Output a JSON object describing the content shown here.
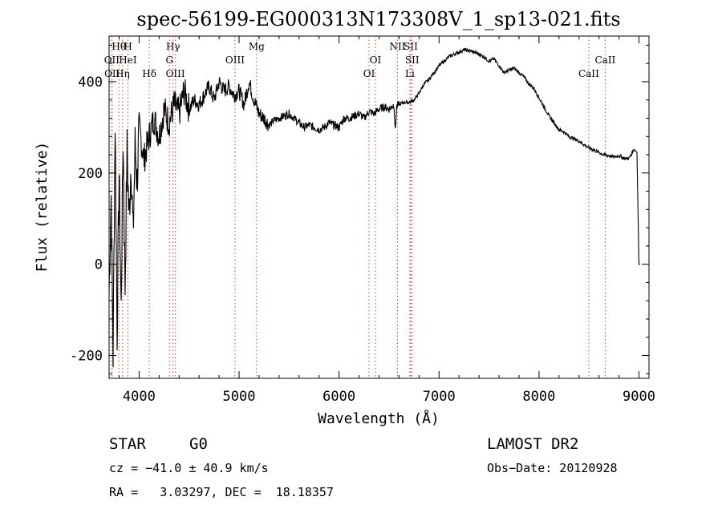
{
  "chart_data": {
    "type": "line",
    "title": "spec-56199-EG000313N173308V_1_sp13-021.fits",
    "xlabel": "Wavelength (Å)",
    "ylabel": "Flux (relative)",
    "xlim": [
      3700,
      9100
    ],
    "ylim": [
      -250,
      500
    ],
    "xticks": [
      4000,
      5000,
      6000,
      7000,
      8000,
      9000
    ],
    "yticks": [
      -200,
      0,
      200,
      400
    ],
    "series": [
      {
        "name": "flux",
        "x": [
          3700,
          3720,
          3740,
          3760,
          3780,
          3800,
          3820,
          3840,
          3860,
          3880,
          3900,
          3920,
          3940,
          3960,
          3980,
          4000,
          4050,
          4100,
          4150,
          4200,
          4250,
          4300,
          4350,
          4400,
          4450,
          4500,
          4550,
          4600,
          4650,
          4700,
          4750,
          4800,
          4850,
          4900,
          4950,
          5000,
          5050,
          5100,
          5150,
          5200,
          5250,
          5300,
          5350,
          5400,
          5450,
          5500,
          5550,
          5600,
          5650,
          5700,
          5750,
          5800,
          5850,
          5900,
          5950,
          6000,
          6050,
          6100,
          6150,
          6200,
          6250,
          6300,
          6350,
          6400,
          6450,
          6500,
          6550,
          6563,
          6575,
          6600,
          6650,
          6700,
          6750,
          6800,
          6850,
          6900,
          6950,
          7000,
          7050,
          7100,
          7150,
          7200,
          7250,
          7300,
          7350,
          7400,
          7450,
          7500,
          7550,
          7600,
          7650,
          7700,
          7750,
          7800,
          7850,
          7900,
          7950,
          8000,
          8050,
          8100,
          8150,
          8200,
          8250,
          8300,
          8350,
          8400,
          8450,
          8500,
          8550,
          8600,
          8650,
          8700,
          8750,
          8800,
          8850,
          8900,
          8950,
          8980,
          9000,
          9010
        ],
        "y": [
          -60,
          150,
          -200,
          320,
          -150,
          200,
          -100,
          280,
          -50,
          250,
          100,
          230,
          60,
          260,
          180,
          300,
          230,
          280,
          320,
          280,
          340,
          310,
          350,
          330,
          380,
          340,
          360,
          350,
          370,
          390,
          360,
          400,
          380,
          390,
          370,
          380,
          350,
          400,
          360,
          330,
          320,
          305,
          315,
          320,
          325,
          330,
          320,
          310,
          300,
          305,
          300,
          295,
          300,
          310,
          305,
          300,
          320,
          320,
          325,
          330,
          320,
          335,
          330,
          340,
          345,
          340,
          350,
          290,
          345,
          350,
          355,
          355,
          360,
          375,
          395,
          405,
          420,
          435,
          445,
          455,
          460,
          465,
          470,
          468,
          465,
          460,
          455,
          445,
          450,
          435,
          420,
          425,
          430,
          420,
          410,
          395,
          385,
          365,
          345,
          325,
          310,
          295,
          290,
          280,
          275,
          270,
          262,
          255,
          250,
          245,
          240,
          238,
          235,
          238,
          232,
          232,
          252,
          245,
          0,
          0
        ]
      }
    ],
    "spectral_lines": [
      {
        "label": "Hθ",
        "row": 1,
        "wave": 3798
      },
      {
        "label": "OII",
        "row": 2,
        "wave": 3727
      },
      {
        "label": "OII",
        "row": 3,
        "wave": 3730
      },
      {
        "label": "H",
        "row": 1,
        "wave": 3889
      },
      {
        "label": "HeI",
        "row": 2,
        "wave": 3888
      },
      {
        "label": "Hη",
        "row": 3,
        "wave": 3835
      },
      {
        "label": "Hδ",
        "row": 3,
        "wave": 4102
      },
      {
        "label": "Hγ",
        "row": 1,
        "wave": 4340
      },
      {
        "label": "G",
        "row": 2,
        "wave": 4304
      },
      {
        "label": "OIII",
        "row": 3,
        "wave": 4363
      },
      {
        "label": "OIII",
        "row": 2,
        "wave": 4959
      },
      {
        "label": "Mg",
        "row": 1,
        "wave": 5175
      },
      {
        "label": "OI",
        "row": 2,
        "wave": 6364
      },
      {
        "label": "OI",
        "row": 3,
        "wave": 6300
      },
      {
        "label": "NII",
        "row": 1,
        "wave": 6584
      },
      {
        "label": "SII",
        "row": 1,
        "wave": 6717
      },
      {
        "label": "SII",
        "row": 2,
        "wave": 6731
      },
      {
        "label": "Li",
        "row": 3,
        "wave": 6708
      },
      {
        "label": "CaII",
        "row": 2,
        "wave": 8662
      },
      {
        "label": "CaII",
        "row": 3,
        "wave": 8498
      }
    ]
  },
  "info": {
    "class": "STAR",
    "subclass": "G0",
    "survey": "LAMOST DR2",
    "cz": "cz = −41.0 ± 40.9 km/s",
    "obs_date": "Obs−Date: 20120928",
    "coords": "RA =   3.03297, DEC =  18.18357"
  },
  "colors": {
    "line_marker": "#d04040",
    "spectrum": "#000000"
  }
}
